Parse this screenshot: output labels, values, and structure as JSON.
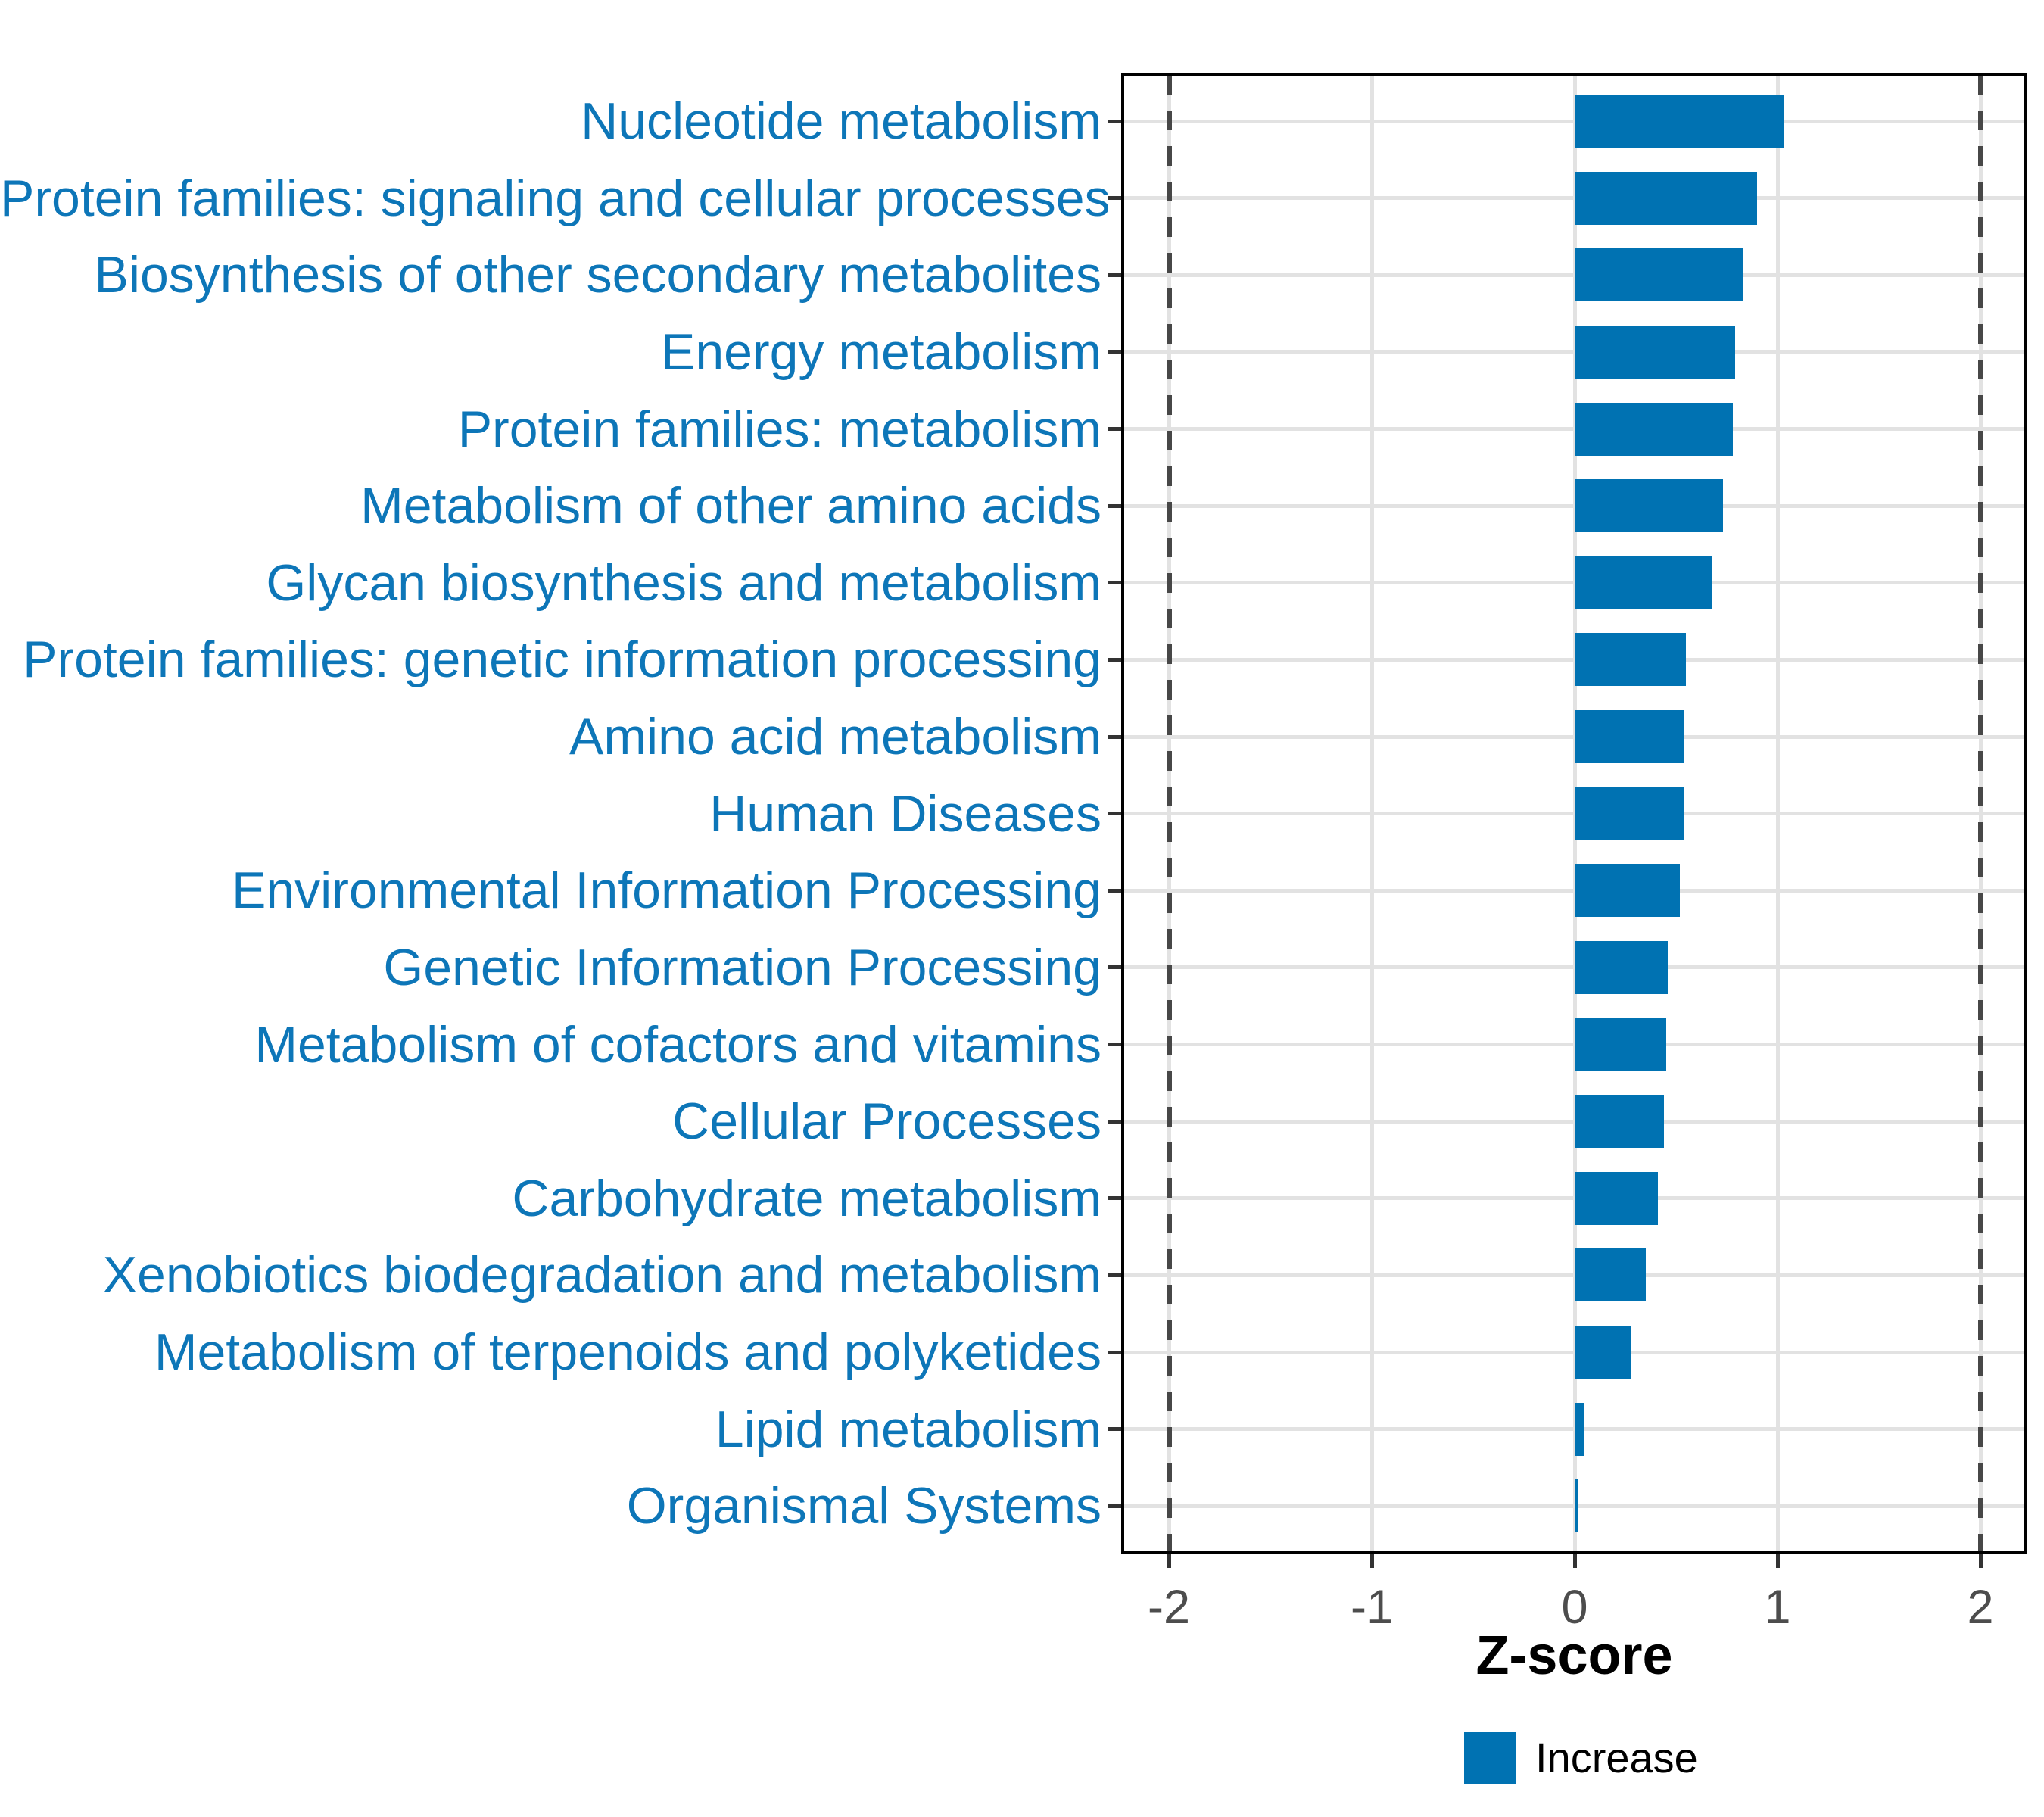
{
  "chart_data": {
    "type": "bar",
    "orientation": "horizontal",
    "title": "",
    "xlabel": "Z-score",
    "ylabel": "",
    "categories": [
      "Nucleotide metabolism",
      "Protein families: signaling and cellular processes",
      "Biosynthesis of other secondary metabolites",
      "Energy metabolism",
      "Protein families: metabolism",
      "Metabolism of other amino acids",
      "Glycan biosynthesis and metabolism",
      "Protein families: genetic information processing",
      "Amino acid metabolism",
      "Human Diseases",
      "Environmental Information Processing",
      "Genetic Information Processing",
      "Metabolism of cofactors and vitamins",
      "Cellular Processes",
      "Carbohydrate metabolism",
      "Xenobiotics biodegradation and metabolism",
      "Metabolism of terpenoids and polyketides",
      "Lipid metabolism",
      "Organismal Systems"
    ],
    "values": [
      1.03,
      0.9,
      0.83,
      0.79,
      0.78,
      0.73,
      0.68,
      0.55,
      0.54,
      0.54,
      0.52,
      0.46,
      0.45,
      0.44,
      0.41,
      0.35,
      0.28,
      0.05,
      0.02
    ],
    "xlim": [
      -2.22,
      2.22
    ],
    "xticks": [
      -2,
      -1,
      0,
      1,
      2
    ],
    "xtick_labels": [
      "-2",
      "-1",
      "0",
      "1",
      "2"
    ],
    "reference_lines": [
      -2,
      2
    ],
    "grid": true,
    "legend": {
      "label": "Increase",
      "position": "bottom"
    },
    "colors": {
      "bar": "#0072b2",
      "category_label": "#0d76b8",
      "grid": "#e2e2e2",
      "dashed_line": "#474747",
      "tick": "#333333",
      "tick_label": "#4d4d4d",
      "axis_title": "#000000",
      "panel_border": "#000000",
      "background": "#ffffff"
    }
  }
}
